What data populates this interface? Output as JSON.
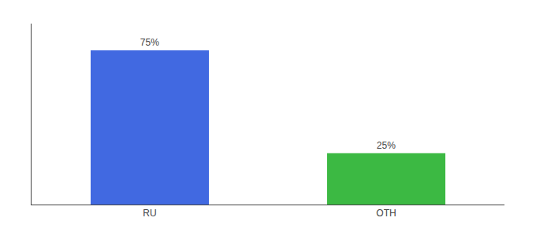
{
  "chart_data": {
    "type": "bar",
    "categories": [
      "RU",
      "OTH"
    ],
    "values": [
      75,
      25
    ],
    "value_labels": [
      "75%",
      "25%"
    ],
    "colors": [
      "#4169E1",
      "#3CB943"
    ],
    "ylim": [
      0,
      88
    ],
    "data_labels": true,
    "tick_labels": "x",
    "grid": false
  }
}
